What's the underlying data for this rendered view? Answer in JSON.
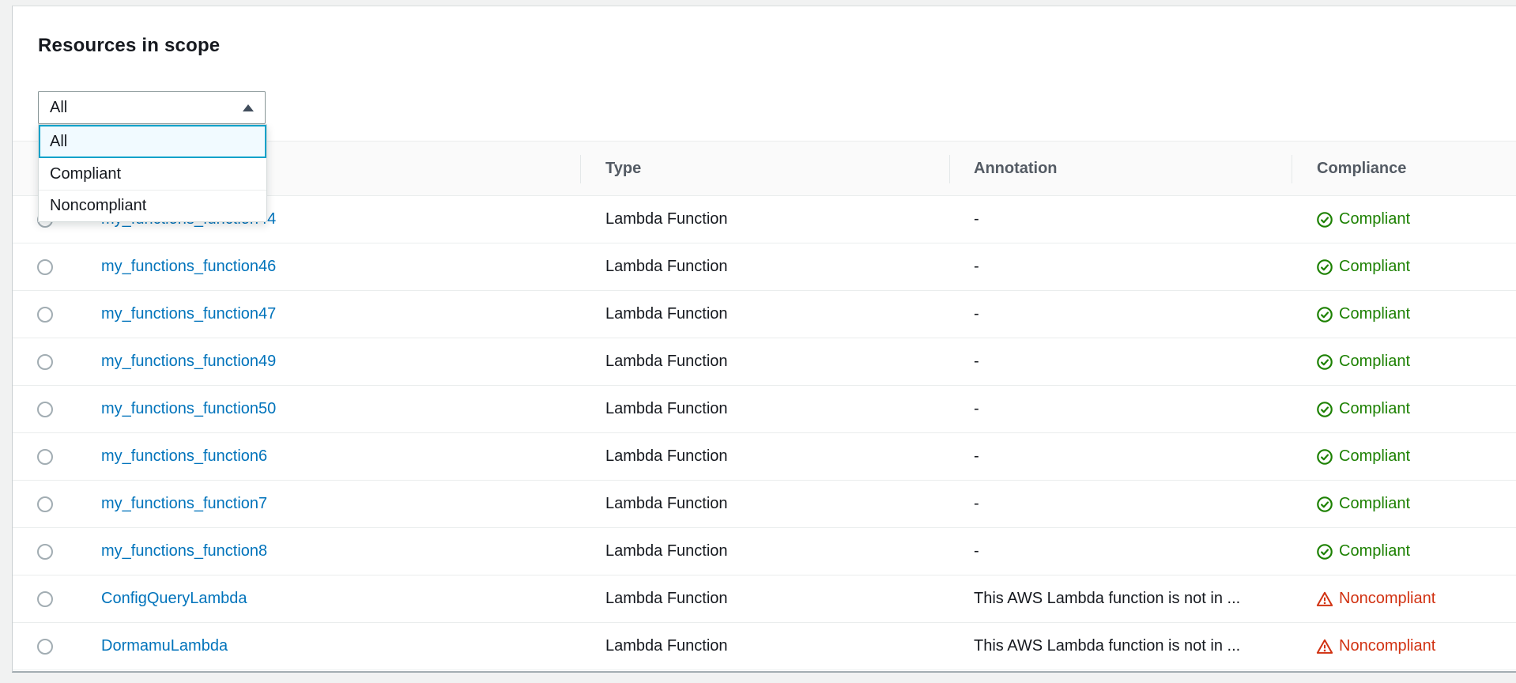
{
  "page": {
    "title": "Resources in scope"
  },
  "filter": {
    "selected": "All",
    "options": [
      {
        "label": "All",
        "selected": true
      },
      {
        "label": "Compliant",
        "selected": false
      },
      {
        "label": "Noncompliant",
        "selected": false
      }
    ]
  },
  "table": {
    "headers": {
      "type": "Type",
      "annotation": "Annotation",
      "compliance": "Compliance"
    },
    "rows": [
      {
        "name": "my_functions_function44",
        "type": "Lambda Function",
        "annotation": "-",
        "compliance": "Compliant"
      },
      {
        "name": "my_functions_function46",
        "type": "Lambda Function",
        "annotation": "-",
        "compliance": "Compliant"
      },
      {
        "name": "my_functions_function47",
        "type": "Lambda Function",
        "annotation": "-",
        "compliance": "Compliant"
      },
      {
        "name": "my_functions_function49",
        "type": "Lambda Function",
        "annotation": "-",
        "compliance": "Compliant"
      },
      {
        "name": "my_functions_function50",
        "type": "Lambda Function",
        "annotation": "-",
        "compliance": "Compliant"
      },
      {
        "name": "my_functions_function6",
        "type": "Lambda Function",
        "annotation": "-",
        "compliance": "Compliant"
      },
      {
        "name": "my_functions_function7",
        "type": "Lambda Function",
        "annotation": "-",
        "compliance": "Compliant"
      },
      {
        "name": "my_functions_function8",
        "type": "Lambda Function",
        "annotation": "-",
        "compliance": "Compliant"
      },
      {
        "name": "ConfigQueryLambda",
        "type": "Lambda Function",
        "annotation": "This AWS Lambda function is not in ...",
        "compliance": "Noncompliant"
      },
      {
        "name": "DormamuLambda",
        "type": "Lambda Function",
        "annotation": "This AWS Lambda function is not in ...",
        "compliance": "Noncompliant"
      }
    ]
  },
  "icons": {
    "dropdown_caret": "caret-up-icon",
    "compliant": "check-circle-icon",
    "noncompliant": "warning-triangle-icon"
  },
  "colors": {
    "link": "#0073bb",
    "compliant_green": "#1d8102",
    "noncompliant_red": "#d13212",
    "selected_option_border": "#00a1c9",
    "selected_option_bg": "#f1faff",
    "header_text": "#545b64"
  }
}
